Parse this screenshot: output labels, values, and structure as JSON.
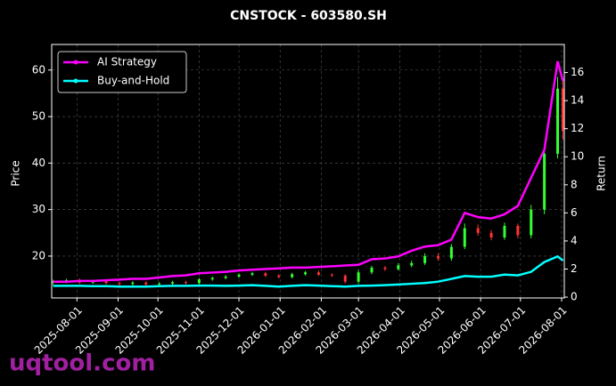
{
  "chart_data": {
    "type": "candlestick",
    "title": "CNSTOCK - 603580.SH",
    "ylabel": "Price",
    "y2label": "Return",
    "watermark": "uqtool.com",
    "x": [
      "2025-07-14",
      "2025-07-24",
      "2025-08-03",
      "2025-08-13",
      "2025-08-23",
      "2025-09-02",
      "2025-09-12",
      "2025-09-22",
      "2025-10-02",
      "2025-10-12",
      "2025-10-22",
      "2025-11-01",
      "2025-11-11",
      "2025-11-21",
      "2025-12-01",
      "2025-12-11",
      "2025-12-21",
      "2025-12-31",
      "2026-01-10",
      "2026-01-20",
      "2026-01-30",
      "2026-02-09",
      "2026-02-19",
      "2026-03-01",
      "2026-03-11",
      "2026-03-21",
      "2026-03-31",
      "2026-04-10",
      "2026-04-20",
      "2026-04-30",
      "2026-05-10",
      "2026-05-20",
      "2026-05-30",
      "2026-06-09",
      "2026-06-19",
      "2026-06-29",
      "2026-07-09",
      "2026-07-19",
      "2026-07-29",
      "2026-08-02"
    ],
    "candles": {
      "up_color": "#33ff33",
      "down_color": "#ff3333",
      "open": [
        14.3,
        14.5,
        14.8,
        14.3,
        14.6,
        14.2,
        14.0,
        14.3,
        13.9,
        14.1,
        14.4,
        14.2,
        15.0,
        15.3,
        15.6,
        16.0,
        16.3,
        15.8,
        15.5,
        16.1,
        16.5,
        16.0,
        15.8,
        14.5,
        16.5,
        17.5,
        17.2,
        18.0,
        18.5,
        20.0,
        19.5,
        22.0,
        26.0,
        25.0,
        24.0,
        26.5,
        24.5,
        30.0,
        42.0,
        56.0
      ],
      "high": [
        14.9,
        15.1,
        15.2,
        14.9,
        14.9,
        14.5,
        14.6,
        14.6,
        14.4,
        14.7,
        14.7,
        15.3,
        15.6,
        15.9,
        16.3,
        16.6,
        16.6,
        16.1,
        16.4,
        16.8,
        16.9,
        16.3,
        16.1,
        17.0,
        17.9,
        17.9,
        18.5,
        19.0,
        20.6,
        20.6,
        22.6,
        27.0,
        26.8,
        25.6,
        27.2,
        27.0,
        31.0,
        43.5,
        58.5,
        58.0
      ],
      "low": [
        13.9,
        14.2,
        14.0,
        14.0,
        13.9,
        13.7,
        13.7,
        13.6,
        13.6,
        13.8,
        13.9,
        13.9,
        14.7,
        15.0,
        15.3,
        15.7,
        15.5,
        15.2,
        15.2,
        15.8,
        15.7,
        15.5,
        14.1,
        14.0,
        16.1,
        16.8,
        16.9,
        17.6,
        18.1,
        19.0,
        19.0,
        21.5,
        24.4,
        23.4,
        23.5,
        23.8,
        23.8,
        29.0,
        41.0,
        45.0
      ],
      "close": [
        14.5,
        14.8,
        14.3,
        14.6,
        14.2,
        14.0,
        14.3,
        13.9,
        14.1,
        14.4,
        14.2,
        15.0,
        15.3,
        15.6,
        16.0,
        16.3,
        15.8,
        15.5,
        16.1,
        16.5,
        16.0,
        15.8,
        14.5,
        16.5,
        17.5,
        17.2,
        18.0,
        18.5,
        20.0,
        19.5,
        22.0,
        26.0,
        25.0,
        24.0,
        26.5,
        24.5,
        30.0,
        42.0,
        56.0,
        47.0
      ]
    },
    "series": [
      {
        "name": "AI Strategy",
        "color": "#ff00ff",
        "axis": "y2",
        "values": [
          1.1,
          1.1,
          1.15,
          1.15,
          1.2,
          1.25,
          1.3,
          1.3,
          1.4,
          1.5,
          1.55,
          1.7,
          1.75,
          1.8,
          1.9,
          1.95,
          2.0,
          2.05,
          2.1,
          2.1,
          2.15,
          2.2,
          2.25,
          2.3,
          2.7,
          2.75,
          2.9,
          3.3,
          3.6,
          3.7,
          4.1,
          6.0,
          5.7,
          5.6,
          5.9,
          6.5,
          8.5,
          10.5,
          16.8,
          15.4
        ]
      },
      {
        "name": "Buy-and-Hold",
        "color": "#00ffff",
        "axis": "y2",
        "values": [
          0.8,
          0.8,
          0.8,
          0.78,
          0.78,
          0.75,
          0.75,
          0.75,
          0.78,
          0.8,
          0.8,
          0.82,
          0.82,
          0.8,
          0.82,
          0.85,
          0.8,
          0.75,
          0.8,
          0.85,
          0.82,
          0.78,
          0.75,
          0.8,
          0.82,
          0.85,
          0.9,
          0.95,
          1.0,
          1.1,
          1.3,
          1.5,
          1.45,
          1.45,
          1.6,
          1.55,
          1.8,
          2.5,
          2.9,
          2.6
        ]
      }
    ],
    "xlim": [
      "2025-07-13",
      "2026-08-03"
    ],
    "xticks": [
      "2025-08-01",
      "2025-09-01",
      "2025-10-01",
      "2025-11-01",
      "2025-12-01",
      "2026-01-01",
      "2026-02-01",
      "2026-03-01",
      "2026-04-01",
      "2026-05-01",
      "2026-06-01",
      "2026-07-01",
      "2026-08-01"
    ],
    "ylim": [
      11,
      65.5
    ],
    "yticks": [
      20,
      30,
      40,
      50,
      60
    ],
    "y2lim": [
      -0.06,
      18
    ],
    "y2ticks": [
      0,
      2,
      4,
      6,
      8,
      10,
      12,
      14,
      16
    ],
    "grid": true,
    "legend": "upper left"
  }
}
